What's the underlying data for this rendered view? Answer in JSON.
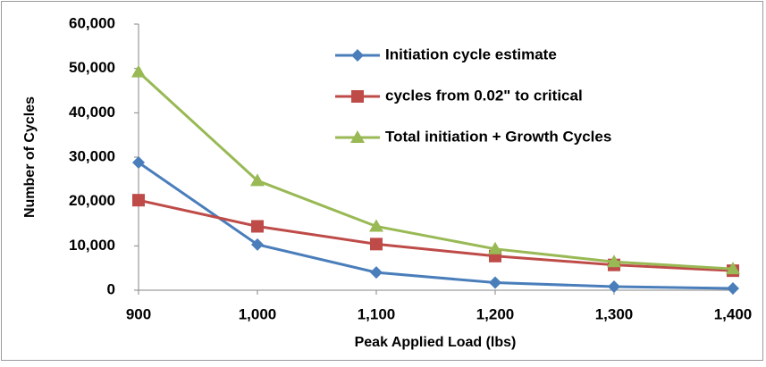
{
  "chart_data": {
    "type": "line",
    "x_label": "Peak Applied Load (lbs)",
    "y_label": "Number of Cycles",
    "x": [
      900,
      1000,
      1100,
      1200,
      1300,
      1400
    ],
    "series": [
      {
        "name": "Initiation cycle estimate",
        "color": "#4a7ebb",
        "marker": "diamond",
        "values": [
          28800,
          10300,
          4000,
          1700,
          800,
          400
        ]
      },
      {
        "name": "cycles from 0.02\" to critical",
        "color": "#be4b48",
        "marker": "square",
        "values": [
          20300,
          14400,
          10400,
          7700,
          5700,
          4400
        ]
      },
      {
        "name": "Total initiation + Growth Cycles",
        "color": "#98b954",
        "marker": "triangle",
        "values": [
          49200,
          24700,
          14400,
          9300,
          6400,
          4800
        ]
      }
    ],
    "xlim": [
      900,
      1400
    ],
    "xticks": [
      900,
      {
        "value": 1000,
        "label": "1,000"
      },
      {
        "value": 1100,
        "label": "1,100"
      },
      {
        "value": 1200,
        "label": "1,200"
      },
      {
        "value": 1300,
        "label": "1,300"
      },
      {
        "value": 1400,
        "label": "1,400"
      }
    ],
    "ylim": [
      0,
      60000
    ],
    "yticks": [
      0,
      {
        "value": 10000,
        "label": "10,000"
      },
      {
        "value": 20000,
        "label": "20,000"
      },
      {
        "value": 30000,
        "label": "30,000"
      },
      {
        "value": 40000,
        "label": "40,000"
      },
      {
        "value": 50000,
        "label": "50,000"
      },
      {
        "value": 60000,
        "label": "60,000"
      }
    ],
    "grid": false,
    "legend": "upper right"
  }
}
